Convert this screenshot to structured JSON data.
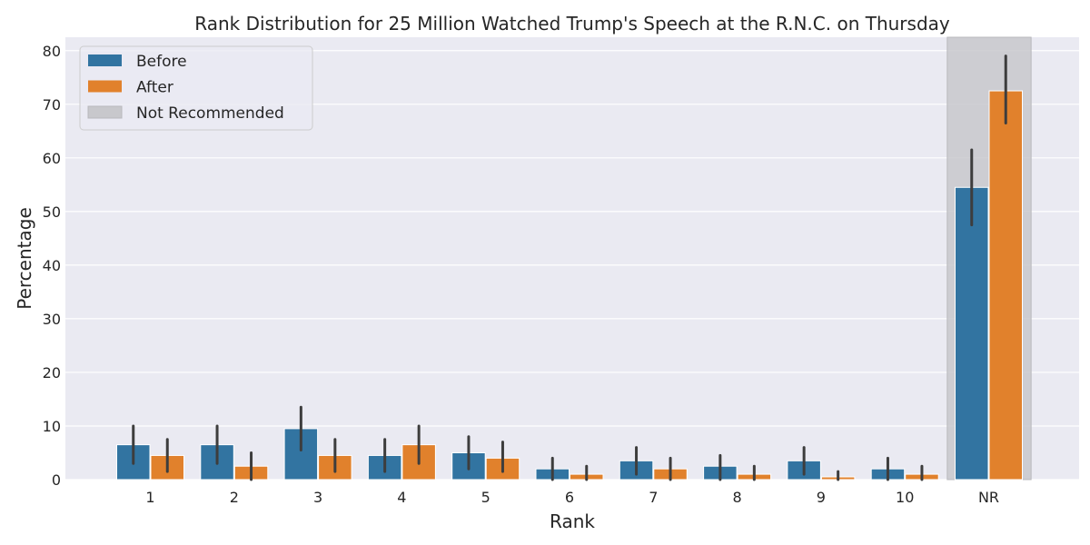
{
  "chart_data": {
    "type": "bar",
    "title": "Rank Distribution for 25 Million Watched Trump's Speech at the R.N.C. on Thursday",
    "xlabel": "Rank",
    "ylabel": "Percentage",
    "categories": [
      "1",
      "2",
      "3",
      "4",
      "5",
      "6",
      "7",
      "8",
      "9",
      "10",
      "NR"
    ],
    "ylim": [
      0,
      82.5
    ],
    "yticks": [
      "0",
      "10",
      "20",
      "30",
      "40",
      "50",
      "60",
      "70",
      "80"
    ],
    "grid": true,
    "legend_position": "top-left",
    "series": [
      {
        "name": "Before",
        "color": "#3274a1",
        "values": [
          6.5,
          6.5,
          9.5,
          4.5,
          5.0,
          2.0,
          3.5,
          2.5,
          3.5,
          2.0,
          54.5
        ],
        "err_low": [
          3.0,
          3.0,
          5.5,
          1.5,
          2.0,
          0.0,
          1.0,
          0.0,
          1.0,
          0.0,
          47.5
        ],
        "err_high": [
          10.0,
          10.0,
          13.5,
          7.5,
          8.0,
          4.0,
          6.0,
          4.5,
          6.0,
          4.0,
          61.5
        ]
      },
      {
        "name": "After",
        "color": "#e1812c",
        "values": [
          4.5,
          2.5,
          4.5,
          6.5,
          4.0,
          1.0,
          2.0,
          1.0,
          0.5,
          1.0,
          72.5
        ],
        "err_low": [
          1.5,
          0.0,
          1.5,
          3.0,
          1.5,
          0.0,
          0.0,
          0.0,
          0.0,
          0.0,
          66.5
        ],
        "err_high": [
          7.5,
          5.0,
          7.5,
          10.0,
          7.0,
          2.5,
          4.0,
          2.5,
          1.5,
          2.5,
          79.0
        ]
      }
    ],
    "highlight": {
      "category": "NR",
      "label": "Not Recommended",
      "color": "#c8c8cc"
    }
  }
}
